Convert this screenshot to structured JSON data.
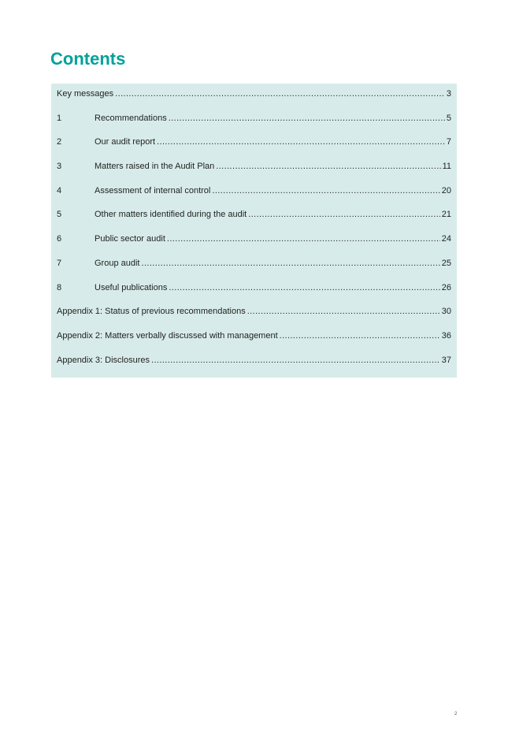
{
  "title": "Contents",
  "entries": [
    {
      "number": "",
      "label": "Key messages",
      "page": "3"
    },
    {
      "number": "1",
      "label": "Recommendations",
      "page": "5"
    },
    {
      "number": "2",
      "label": "Our audit report",
      "page": "7"
    },
    {
      "number": "3",
      "label": "Matters raised in the Audit Plan",
      "page": "11"
    },
    {
      "number": "4",
      "label": "Assessment of internal control",
      "page": "20"
    },
    {
      "number": "5",
      "label": "Other matters identified during the audit",
      "page": "21"
    },
    {
      "number": "6",
      "label": "Public sector audit",
      "page": "24"
    },
    {
      "number": "7",
      "label": "Group audit",
      "page": "25"
    },
    {
      "number": "8",
      "label": "Useful publications",
      "page": "26"
    },
    {
      "number": "",
      "label": "Appendix 1: Status of previous recommendations",
      "page": "30"
    },
    {
      "number": "",
      "label": "Appendix 2: Matters verbally discussed with management",
      "page": "36"
    },
    {
      "number": "",
      "label": "Appendix 3: Disclosures",
      "page": "37"
    }
  ],
  "footer": {
    "page_number": "2"
  },
  "colors": {
    "accent": "#00a19a",
    "toc_background": "#d7ecea"
  }
}
